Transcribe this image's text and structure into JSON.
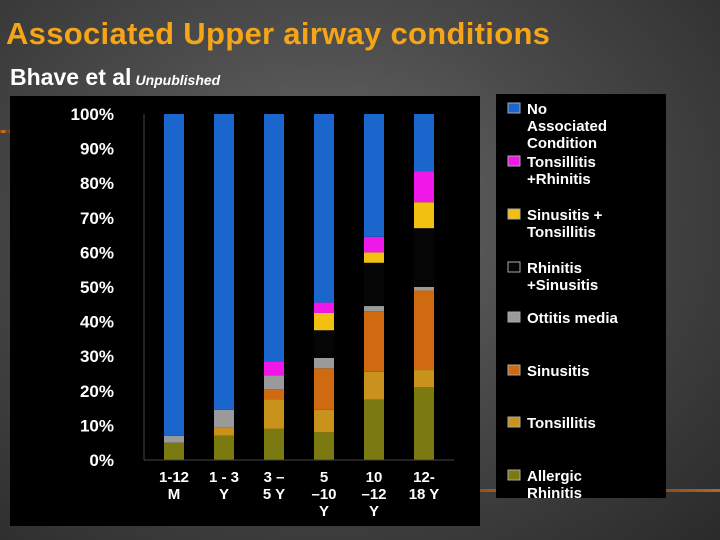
{
  "title": "Associated Upper airway conditions",
  "subtitle": "Bhave et al",
  "subtitle_note": "Unpublished",
  "chart_data": {
    "type": "bar",
    "stacked": true,
    "categories": [
      [
        "1-12",
        "M"
      ],
      [
        "1 - 3",
        "Y"
      ],
      [
        "3 –",
        "5 Y"
      ],
      [
        "5",
        "–10",
        "Y"
      ],
      [
        "10",
        "–12",
        "Y"
      ],
      [
        "12-",
        "18 Y"
      ]
    ],
    "y_ticks": [
      "0%",
      "10%",
      "20%",
      "30%",
      "40%",
      "50%",
      "60%",
      "70%",
      "80%",
      "90%",
      "100%"
    ],
    "ylim": [
      0,
      100
    ],
    "grid": false,
    "legend_position": "right",
    "series": [
      {
        "name": "Allergic Rhinitis",
        "color": "#7a7a10",
        "values": [
          5,
          7,
          9,
          8,
          17.5,
          21
        ]
      },
      {
        "name": "Tonsillitis",
        "color": "#c8921c",
        "values": [
          0,
          2.5,
          8.5,
          6.5,
          8,
          5
        ]
      },
      {
        "name": "Sinusitis",
        "color": "#d06a10",
        "values": [
          0,
          0,
          3,
          12,
          17.5,
          23
        ]
      },
      {
        "name": "Ottitis media",
        "color": "#9a9a9a",
        "values": [
          2,
          5,
          4,
          3,
          1.5,
          1
        ]
      },
      {
        "name": "Rhinitis +Sinusitis",
        "color": "#050505",
        "values": [
          0,
          0,
          0,
          8,
          12.5,
          17
        ]
      },
      {
        "name": "Sinusitis + Tonsillitis",
        "color": "#f2c010",
        "values": [
          0,
          0,
          0,
          5,
          3,
          7.5
        ]
      },
      {
        "name": "Tonsillitis +Rhinitis",
        "color": "#f018e8",
        "values": [
          0,
          0,
          4,
          3,
          4.5,
          9
        ]
      },
      {
        "name": "No Associated Condition",
        "color": "#1a66cc",
        "values": [
          93,
          85.5,
          71.5,
          54.5,
          35.5,
          16.5
        ]
      }
    ],
    "legend": [
      {
        "lines": [
          "No",
          "Associated",
          "Condition"
        ],
        "color": "#1a66cc"
      },
      {
        "lines": [
          "Tonsillitis",
          "+Rhinitis"
        ],
        "color": "#f018e8"
      },
      {
        "lines": [
          "Sinusitis +",
          "Tonsillitis"
        ],
        "color": "#f2c010"
      },
      {
        "lines": [
          "Rhinitis",
          "+Sinusitis"
        ],
        "color": "#050505"
      },
      {
        "lines": [
          "Ottitis media"
        ],
        "color": "#9a9a9a"
      },
      {
        "lines": [
          "Sinusitis"
        ],
        "color": "#d06a10"
      },
      {
        "lines": [
          "Tonsillitis"
        ],
        "color": "#c8921c"
      },
      {
        "lines": [
          "Allergic",
          "Rhinitis"
        ],
        "color": "#7a7a10"
      }
    ]
  }
}
